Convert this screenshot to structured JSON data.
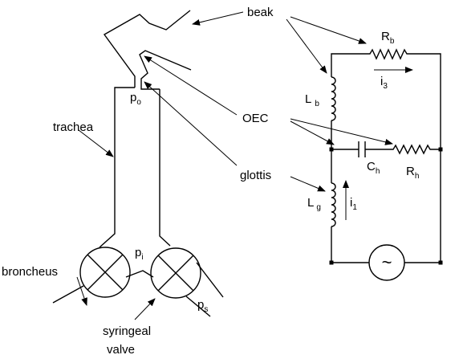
{
  "labels": {
    "beak": "beak",
    "oec": "OEC",
    "trachea": "trachea",
    "glottis": "glottis",
    "broncheus": "broncheus",
    "syringeal_line1": "syringeal",
    "syringeal_line2": "valve"
  },
  "pressures": {
    "po": {
      "base": "p",
      "sub": "o"
    },
    "pi": {
      "base": "p",
      "sub": "i"
    },
    "ps": {
      "base": "p",
      "sub": "s"
    }
  },
  "circuit": {
    "Rb": {
      "base": "R",
      "sub": "b"
    },
    "i3": {
      "base": "i",
      "sub": "3"
    },
    "Lb": {
      "base": "L",
      "sub": "b"
    },
    "Ch": {
      "base": "C",
      "sub": "h"
    },
    "Rh": {
      "base": "R",
      "sub": "h"
    },
    "Lg": {
      "base": "L",
      "sub": "g"
    },
    "i1": {
      "base": "i",
      "sub": "1"
    },
    "source_symbol": "~"
  }
}
